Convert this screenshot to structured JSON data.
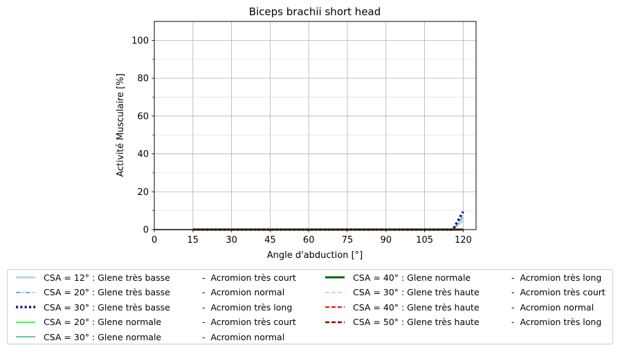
{
  "chart_data": {
    "type": "line",
    "title": "Biceps brachii short head",
    "xlabel": "Angle d'abduction [°]",
    "ylabel": "Activité Musculaire [%]",
    "xlim": [
      0,
      125
    ],
    "ylim": [
      0,
      110
    ],
    "xticks": [
      0,
      15,
      30,
      45,
      60,
      75,
      90,
      105,
      120
    ],
    "yticks": [
      0,
      20,
      40,
      60,
      80,
      100
    ],
    "grid": true,
    "legend_position": "bottom",
    "series": [
      {
        "name": "CSA = 12° : Glene très basse",
        "name2": "-  Acromion très court",
        "color": "#add8e6",
        "style": "solid",
        "width": 3,
        "x": [
          15,
          116,
          120
        ],
        "y": [
          0,
          0,
          5
        ]
      },
      {
        "name": "CSA = 20° : Glene très basse",
        "name2": "-  Acromion normal",
        "color": "#4a90d9",
        "style": "dashdot",
        "width": 1.5,
        "x": [
          15,
          116,
          120
        ],
        "y": [
          0,
          0,
          7
        ]
      },
      {
        "name": "CSA = 30° : Glene très basse",
        "name2": "-  Acromion très long",
        "color": "#191970",
        "style": "dotted",
        "width": 3.5,
        "x": [
          15,
          116,
          120
        ],
        "y": [
          0,
          0,
          9.5
        ]
      },
      {
        "name": "CSA = 20° : Glene normale",
        "name2": "-  Acromion très court",
        "color": "#00ff00",
        "style": "solid",
        "width": 1.5,
        "x": [
          15,
          120
        ],
        "y": [
          0,
          0
        ]
      },
      {
        "name": "CSA = 30° : Glene normale",
        "name2": "-  Acromion normal",
        "color": "#3cb371",
        "style": "solid",
        "width": 1.5,
        "x": [
          15,
          120
        ],
        "y": [
          0,
          0
        ]
      },
      {
        "name": "CSA = 40° : Glene normale",
        "name2": "-  Acromion très long",
        "color": "#006400",
        "style": "solid",
        "width": 3,
        "x": [
          15,
          120
        ],
        "y": [
          0,
          0
        ]
      },
      {
        "name": "CSA = 30° : Glene très haute",
        "name2": "-  Acromion très court",
        "color": "#ffc0cb",
        "style": "dashed",
        "width": 2,
        "x": [
          15,
          120
        ],
        "y": [
          0,
          0
        ]
      },
      {
        "name": "CSA = 40° : Glene très haute",
        "name2": "-  Acromion normal",
        "color": "#ff0000",
        "style": "dashed",
        "width": 2,
        "x": [
          15,
          120
        ],
        "y": [
          0,
          0
        ]
      },
      {
        "name": "CSA = 50° : Glene très haute",
        "name2": "-  Acromion très long",
        "color": "#8b0000",
        "style": "dashed",
        "width": 2.5,
        "x": [
          15,
          120
        ],
        "y": [
          0,
          0
        ]
      }
    ]
  }
}
